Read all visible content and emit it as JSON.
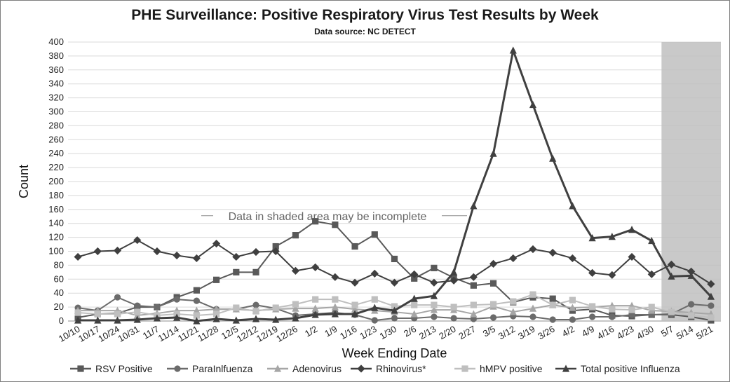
{
  "chart_data": {
    "type": "line",
    "title": "PHE Surveillance: Positive Respiratory Virus Test Results by Week",
    "subtitle": "Data source: NC DETECT",
    "xlabel": "Week Ending Date",
    "ylabel": "Count",
    "ylim": [
      0,
      400
    ],
    "yticks": [
      0,
      20,
      40,
      60,
      80,
      100,
      120,
      140,
      160,
      180,
      200,
      220,
      240,
      260,
      280,
      300,
      320,
      340,
      360,
      380,
      400
    ],
    "grid": true,
    "legend_position": "bottom",
    "annotation": "Data in shaded area may be incomplete",
    "shaded_categories": [
      "5/7",
      "5/14",
      "5/21"
    ],
    "categories": [
      "10/10",
      "10/17",
      "10/24",
      "10/31",
      "11/7",
      "11/14",
      "11/21",
      "11/28",
      "12/5",
      "12/12",
      "12/19",
      "12/26",
      "1/2",
      "1/9",
      "1/16",
      "1/23",
      "1/30",
      "2/6",
      "2/13",
      "2/20",
      "2/27",
      "3/5",
      "3/12",
      "3/19",
      "3/26",
      "4/2",
      "4/9",
      "4/16",
      "4/23",
      "4/30",
      "5/7",
      "5/14",
      "5/21"
    ],
    "series": [
      {
        "name": "RSV Positive",
        "marker": "square",
        "color": "#595959",
        "values": [
          5,
          10,
          11,
          20,
          20,
          34,
          44,
          59,
          70,
          70,
          107,
          123,
          143,
          138,
          107,
          124,
          89,
          61,
          76,
          62,
          51,
          54,
          27,
          34,
          32,
          15,
          17,
          8,
          7,
          9,
          9,
          6,
          1
        ]
      },
      {
        "name": "ParaInlfuenza",
        "marker": "circle",
        "color": "#6b6b6b",
        "values": [
          19,
          15,
          34,
          22,
          20,
          31,
          29,
          17,
          17,
          23,
          18,
          8,
          10,
          12,
          9,
          1,
          4,
          4,
          6,
          4,
          3,
          5,
          7,
          6,
          2,
          2,
          6,
          6,
          9,
          9,
          10,
          24,
          22
        ]
      },
      {
        "name": "Adenovirus",
        "marker": "triangle",
        "color": "#a6a6a6",
        "values": [
          15,
          15,
          15,
          8,
          11,
          15,
          15,
          17,
          17,
          15,
          17,
          18,
          18,
          20,
          17,
          15,
          13,
          10,
          16,
          16,
          10,
          21,
          13,
          18,
          23,
          19,
          20,
          22,
          22,
          15,
          14,
          12,
          10
        ]
      },
      {
        "name": "Rhinovirus*",
        "marker": "diamond",
        "color": "#3f3f3f",
        "values": [
          92,
          100,
          101,
          116,
          100,
          94,
          90,
          111,
          92,
          99,
          100,
          72,
          77,
          63,
          55,
          68,
          55,
          67,
          55,
          58,
          63,
          82,
          90,
          103,
          98,
          90,
          69,
          66,
          92,
          67,
          81,
          71,
          53
        ]
      },
      {
        "name": "hMPV positive",
        "marker": "square",
        "color": "#bfbfbf",
        "values": [
          12,
          10,
          10,
          13,
          8,
          10,
          8,
          10,
          19,
          14,
          19,
          24,
          31,
          31,
          23,
          31,
          21,
          23,
          23,
          20,
          23,
          24,
          28,
          38,
          23,
          30,
          21,
          17,
          16,
          20,
          13,
          8,
          5
        ]
      },
      {
        "name": "Total positive Influenza",
        "marker": "triangle",
        "color": "#404040",
        "values": [
          1,
          1,
          1,
          2,
          4,
          5,
          0,
          3,
          1,
          3,
          2,
          4,
          9,
          10,
          10,
          19,
          15,
          32,
          36,
          70,
          165,
          240,
          388,
          310,
          233,
          165,
          119,
          121,
          131,
          115,
          64,
          65,
          35
        ]
      }
    ]
  }
}
